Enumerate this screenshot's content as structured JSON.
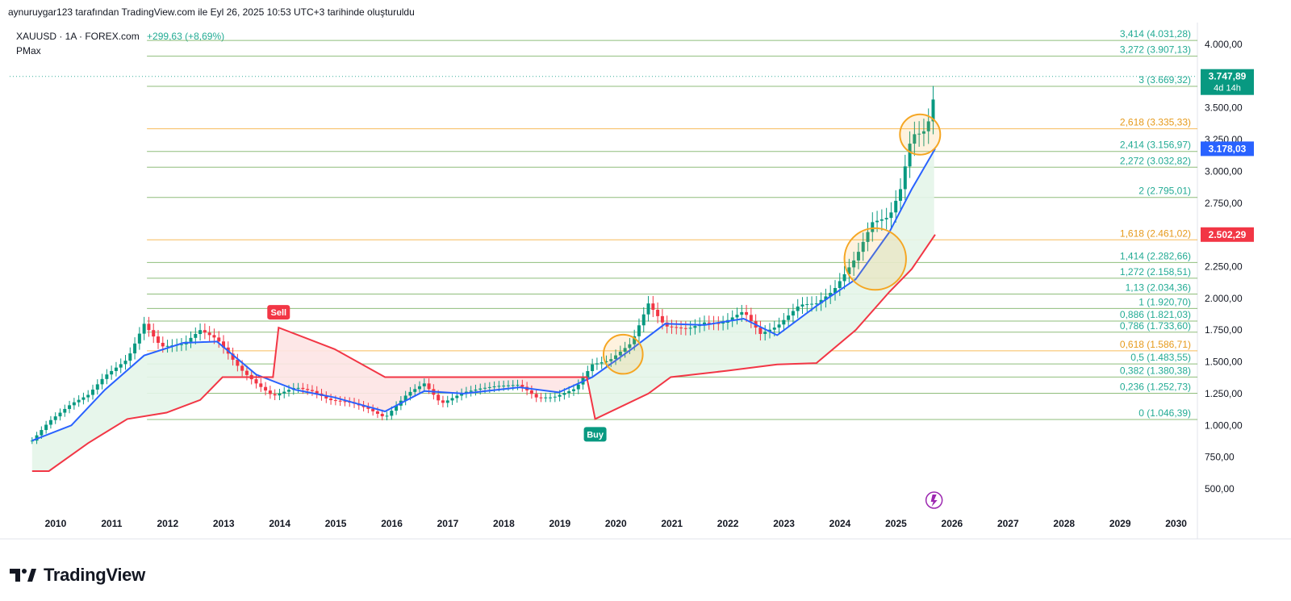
{
  "header": {
    "text": "aynuruygar123 tarafından TradingView.com ile Eyl 26, 2025 10:53 UTC+3 tarihinde oluşturuldu"
  },
  "legend": {
    "symbol": "XAUUSD · 1A · FOREX.com",
    "change": "+299,63 (+8,69%)",
    "indicator": "PMax"
  },
  "footer": {
    "brand": "TradingView",
    "logo_icon": "tradingview-logo-icon"
  },
  "colors": {
    "fib_green": "#22ab94",
    "fib_orange": "#f5a623",
    "fib_line": "#6aa84f",
    "ma_blue": "#2962ff",
    "pmax_red": "#f23645",
    "candle_up": "#089981",
    "candle_down": "#f23645",
    "band_green": "#e4f5e9",
    "band_red": "#fde4e4"
  },
  "chart_data": {
    "type": "candlestick",
    "title": "XAUUSD · 1A · FOREX.com",
    "x_ticks": [
      "2010",
      "2011",
      "2012",
      "2013",
      "2014",
      "2015",
      "2016",
      "2017",
      "2018",
      "2019",
      "2020",
      "2021",
      "2022",
      "2023",
      "2024",
      "2025",
      "2026",
      "2027",
      "2028",
      "2029",
      "2030"
    ],
    "y_ticks": [
      "500,00",
      "750,00",
      "1.000,00",
      "1.250,00",
      "1.500,00",
      "1.750,00",
      "2.000,00",
      "2.250,00",
      "2.500,00",
      "2.750,00",
      "3.000,00",
      "3.250,00",
      "3.500,00",
      "4.000,00"
    ],
    "ylim": [
      350,
      4200
    ],
    "price_badges": [
      {
        "label": "3.747,89",
        "sub": "4d 14h",
        "value": 3747.89,
        "color": "#089981"
      },
      {
        "label": "3.178,03",
        "value": 3178.03,
        "color": "#2962ff"
      },
      {
        "label": "2.502,29",
        "value": 2502.29,
        "color": "#f23645"
      }
    ],
    "fib_levels": [
      {
        "label": "3,414 (4.031,28)",
        "value": 4031.28,
        "color": "green"
      },
      {
        "label": "3,272 (3.907,13)",
        "value": 3907.13,
        "color": "green"
      },
      {
        "label": "3 (3.669,32)",
        "value": 3669.32,
        "color": "green"
      },
      {
        "label": "2,618 (3.335,33)",
        "value": 3335.33,
        "color": "orange"
      },
      {
        "label": "2,414 (3.156,97)",
        "value": 3156.97,
        "color": "green"
      },
      {
        "label": "2,272 (3.032,82)",
        "value": 3032.82,
        "color": "green"
      },
      {
        "label": "2 (2.795,01)",
        "value": 2795.01,
        "color": "green"
      },
      {
        "label": "1,618 (2.461,02)",
        "value": 2461.02,
        "color": "orange"
      },
      {
        "label": "1,414 (2.282,66)",
        "value": 2282.66,
        "color": "green"
      },
      {
        "label": "1,272 (2.158,51)",
        "value": 2158.51,
        "color": "green"
      },
      {
        "label": "1,13 (2.034,36)",
        "value": 2034.36,
        "color": "green"
      },
      {
        "label": "1 (1.920,70)",
        "value": 1920.7,
        "color": "green"
      },
      {
        "label": "0,886 (1.821,03)",
        "value": 1821.03,
        "color": "green"
      },
      {
        "label": "0,786 (1.733,60)",
        "value": 1733.6,
        "color": "green"
      },
      {
        "label": "0,618 (1.586,71)",
        "value": 1586.71,
        "color": "orange"
      },
      {
        "label": "0,5 (1.483,55)",
        "value": 1483.55,
        "color": "green"
      },
      {
        "label": "0,382 (1.380,38)",
        "value": 1380.38,
        "color": "green"
      },
      {
        "label": "0,236 (1.252,73)",
        "value": 1252.73,
        "color": "green"
      },
      {
        "label": "0 (1.046,39)",
        "value": 1046.39,
        "color": "green"
      }
    ],
    "signals": [
      {
        "label": "Sell",
        "date": 2014.0,
        "price": 1770
      },
      {
        "label": "Buy",
        "date": 2019.65,
        "price": 1050
      }
    ],
    "closes": [
      {
        "t": 2009.6,
        "c": 880
      },
      {
        "t": 2009.9,
        "c": 1030
      },
      {
        "t": 2010.3,
        "c": 1170
      },
      {
        "t": 2010.6,
        "c": 1240
      },
      {
        "t": 2010.9,
        "c": 1390
      },
      {
        "t": 2011.3,
        "c": 1520
      },
      {
        "t": 2011.6,
        "c": 1800
      },
      {
        "t": 2011.9,
        "c": 1620
      },
      {
        "t": 2012.3,
        "c": 1640
      },
      {
        "t": 2012.6,
        "c": 1750
      },
      {
        "t": 2012.9,
        "c": 1680
      },
      {
        "t": 2013.3,
        "c": 1450
      },
      {
        "t": 2013.6,
        "c": 1330
      },
      {
        "t": 2013.9,
        "c": 1230
      },
      {
        "t": 2014.3,
        "c": 1300
      },
      {
        "t": 2014.6,
        "c": 1270
      },
      {
        "t": 2014.9,
        "c": 1200
      },
      {
        "t": 2015.3,
        "c": 1180
      },
      {
        "t": 2015.6,
        "c": 1130
      },
      {
        "t": 2015.9,
        "c": 1060
      },
      {
        "t": 2016.3,
        "c": 1250
      },
      {
        "t": 2016.6,
        "c": 1330
      },
      {
        "t": 2016.9,
        "c": 1170
      },
      {
        "t": 2017.3,
        "c": 1260
      },
      {
        "t": 2017.6,
        "c": 1290
      },
      {
        "t": 2017.9,
        "c": 1310
      },
      {
        "t": 2018.3,
        "c": 1320
      },
      {
        "t": 2018.6,
        "c": 1220
      },
      {
        "t": 2018.9,
        "c": 1220
      },
      {
        "t": 2019.3,
        "c": 1290
      },
      {
        "t": 2019.6,
        "c": 1480
      },
      {
        "t": 2019.9,
        "c": 1510
      },
      {
        "t": 2020.3,
        "c": 1650
      },
      {
        "t": 2020.6,
        "c": 1960
      },
      {
        "t": 2020.9,
        "c": 1780
      },
      {
        "t": 2021.3,
        "c": 1760
      },
      {
        "t": 2021.6,
        "c": 1810
      },
      {
        "t": 2021.9,
        "c": 1800
      },
      {
        "t": 2022.3,
        "c": 1900
      },
      {
        "t": 2022.6,
        "c": 1720
      },
      {
        "t": 2022.9,
        "c": 1780
      },
      {
        "t": 2023.3,
        "c": 1950
      },
      {
        "t": 2023.6,
        "c": 1960
      },
      {
        "t": 2023.9,
        "c": 2060
      },
      {
        "t": 2024.3,
        "c": 2320
      },
      {
        "t": 2024.6,
        "c": 2600
      },
      {
        "t": 2024.9,
        "c": 2640
      },
      {
        "t": 2025.1,
        "c": 2860
      },
      {
        "t": 2025.3,
        "c": 3290
      },
      {
        "t": 2025.5,
        "c": 3300
      },
      {
        "t": 2025.66,
        "c": 3450
      },
      {
        "t": 2025.72,
        "c": 3747.89
      }
    ],
    "ma_line": [
      {
        "t": 2009.6,
        "v": 880
      },
      {
        "t": 2010.3,
        "v": 1000
      },
      {
        "t": 2010.9,
        "v": 1280
      },
      {
        "t": 2011.6,
        "v": 1550
      },
      {
        "t": 2012.3,
        "v": 1650
      },
      {
        "t": 2012.9,
        "v": 1660
      },
      {
        "t": 2013.6,
        "v": 1400
      },
      {
        "t": 2014.3,
        "v": 1280
      },
      {
        "t": 2015.0,
        "v": 1220
      },
      {
        "t": 2015.9,
        "v": 1110
      },
      {
        "t": 2016.6,
        "v": 1270
      },
      {
        "t": 2017.3,
        "v": 1250
      },
      {
        "t": 2018.3,
        "v": 1300
      },
      {
        "t": 2019.0,
        "v": 1260
      },
      {
        "t": 2019.6,
        "v": 1380
      },
      {
        "t": 2020.3,
        "v": 1600
      },
      {
        "t": 2020.9,
        "v": 1800
      },
      {
        "t": 2021.6,
        "v": 1790
      },
      {
        "t": 2022.3,
        "v": 1840
      },
      {
        "t": 2022.9,
        "v": 1710
      },
      {
        "t": 2023.6,
        "v": 1940
      },
      {
        "t": 2024.3,
        "v": 2150
      },
      {
        "t": 2024.9,
        "v": 2520
      },
      {
        "t": 2025.3,
        "v": 2860
      },
      {
        "t": 2025.72,
        "v": 3178.03
      }
    ],
    "pmax_line": [
      {
        "t": 2009.6,
        "v": 640
      },
      {
        "t": 2009.9,
        "v": 640
      },
      {
        "t": 2010.6,
        "v": 860
      },
      {
        "t": 2011.3,
        "v": 1050
      },
      {
        "t": 2012.0,
        "v": 1100
      },
      {
        "t": 2012.6,
        "v": 1200
      },
      {
        "t": 2013.0,
        "v": 1380
      },
      {
        "t": 2013.9,
        "v": 1380
      },
      {
        "t": 2014.0,
        "v": 1770
      },
      {
        "t": 2015.0,
        "v": 1600
      },
      {
        "t": 2015.9,
        "v": 1380
      },
      {
        "t": 2019.5,
        "v": 1380
      },
      {
        "t": 2019.65,
        "v": 1050
      },
      {
        "t": 2020.6,
        "v": 1250
      },
      {
        "t": 2021.0,
        "v": 1380
      },
      {
        "t": 2022.0,
        "v": 1430
      },
      {
        "t": 2022.9,
        "v": 1480
      },
      {
        "t": 2023.6,
        "v": 1490
      },
      {
        "t": 2024.3,
        "v": 1750
      },
      {
        "t": 2024.9,
        "v": 2050
      },
      {
        "t": 2025.3,
        "v": 2230
      },
      {
        "t": 2025.72,
        "v": 2502.29
      }
    ],
    "circles": [
      {
        "t": 2020.15,
        "v": 1560,
        "r": 0.35
      },
      {
        "t": 2024.65,
        "v": 2310,
        "r": 0.55
      },
      {
        "t": 2025.45,
        "v": 3290,
        "r": 0.36
      }
    ]
  }
}
